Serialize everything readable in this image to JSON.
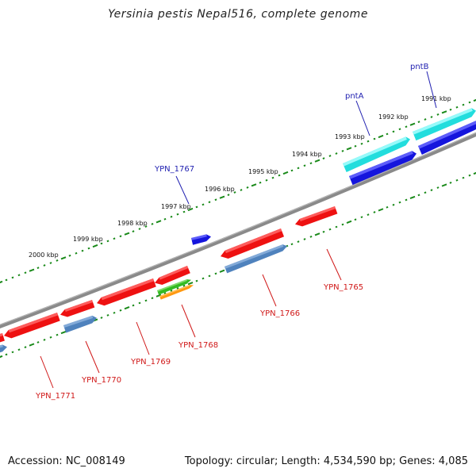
{
  "title": "Yersinia pestis Nepal516, complete genome",
  "footer": {
    "accession": "Accession: NC_008149",
    "summary": "Topology: circular; Length: 4,534,590 bp; Genes: 4,085"
  },
  "colors": {
    "backbone": "#8a8a8a",
    "tick": "#1a8a1a",
    "label_blue": "#1f1fb0",
    "label_red": "#d01818",
    "gene_red": "#ee1111",
    "gene_blue": "#1515dd",
    "gene_cyan": "#22dddd",
    "gene_steel": "#4f82bd",
    "gene_green": "#33bb22",
    "gene_orange": "#ff9911"
  },
  "scale_labels": [
    "1991 kbp",
    "1992 kbp",
    "1993 kbp",
    "1994 kbp",
    "1995 kbp",
    "1996 kbp",
    "1997 kbp",
    "1998 kbp",
    "1999 kbp",
    "2000 kbp"
  ],
  "gene_labels": {
    "pntB": "pntB",
    "pntA": "pntA",
    "YPN_1767": "YPN_1767",
    "YPN_1765": "YPN_1765",
    "YPN_1766": "YPN_1766",
    "YPN_1768": "YPN_1768",
    "YPN_1769": "YPN_1769",
    "YPN_1770": "YPN_1770",
    "YPN_1771": "YPN_1771"
  }
}
